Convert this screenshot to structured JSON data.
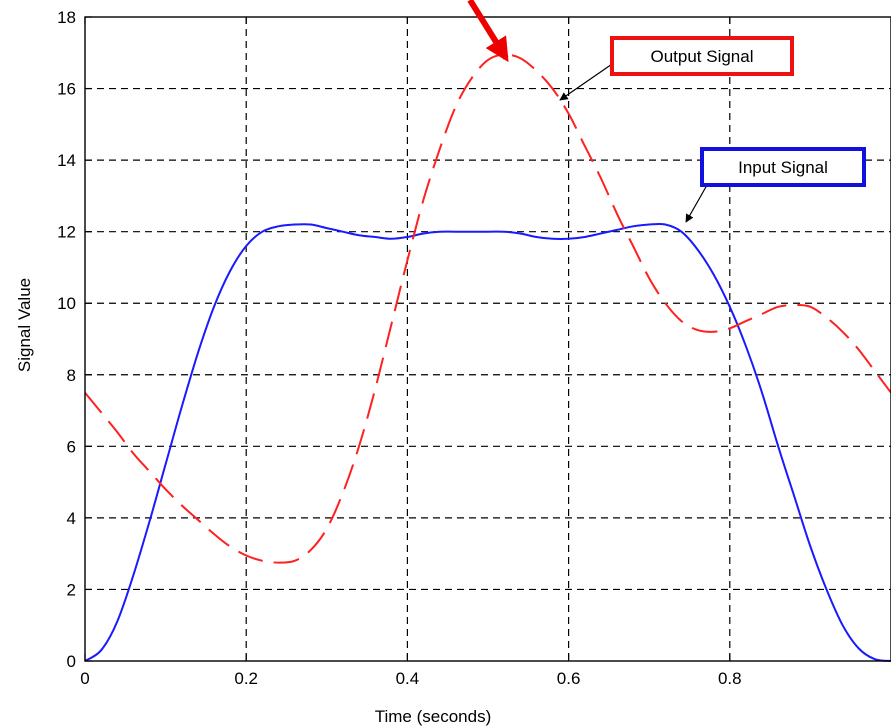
{
  "chart_data": {
    "type": "line",
    "title": "",
    "xlabel": "Time (seconds)",
    "ylabel": "Signal Value",
    "xlim": [
      0,
      1
    ],
    "ylim": [
      0,
      18
    ],
    "x_ticks": [
      0,
      0.2,
      0.4,
      0.6,
      0.8
    ],
    "x_tick_labels": [
      "0",
      "0.2",
      "0.4",
      "0.6",
      "0.8"
    ],
    "y_ticks": [
      0,
      2,
      4,
      6,
      8,
      10,
      12,
      14,
      16,
      18
    ],
    "y_tick_labels": [
      "0",
      "2",
      "4",
      "6",
      "8",
      "10",
      "12",
      "14",
      "16",
      "18"
    ],
    "grid": true,
    "legend": "none",
    "series": [
      {
        "name": "Input Signal",
        "color": "#1a1aff",
        "style": "solid",
        "x": [
          0,
          0.02,
          0.04,
          0.06,
          0.08,
          0.1,
          0.12,
          0.14,
          0.16,
          0.18,
          0.2,
          0.22,
          0.24,
          0.26,
          0.28,
          0.3,
          0.32,
          0.34,
          0.36,
          0.38,
          0.4,
          0.42,
          0.44,
          0.46,
          0.48,
          0.5,
          0.52,
          0.54,
          0.56,
          0.58,
          0.6,
          0.62,
          0.64,
          0.66,
          0.68,
          0.7,
          0.72,
          0.74,
          0.76,
          0.78,
          0.8,
          0.82,
          0.84,
          0.86,
          0.88,
          0.9,
          0.92,
          0.94,
          0.96,
          0.98,
          1.0
        ],
        "y": [
          0,
          0.3,
          1.1,
          2.4,
          3.9,
          5.5,
          7.1,
          8.6,
          9.9,
          10.9,
          11.6,
          12.0,
          12.15,
          12.2,
          12.2,
          12.1,
          12.0,
          11.9,
          11.85,
          11.8,
          11.85,
          11.95,
          12.0,
          12.0,
          12.0,
          12.0,
          12.0,
          11.95,
          11.85,
          11.8,
          11.8,
          11.85,
          11.95,
          12.05,
          12.15,
          12.2,
          12.2,
          12.0,
          11.5,
          10.8,
          9.9,
          8.8,
          7.5,
          6.0,
          4.6,
          3.2,
          2.0,
          1.0,
          0.35,
          0.05,
          0
        ]
      },
      {
        "name": "Output Signal",
        "color": "#ff2020",
        "style": "dashed",
        "x": [
          0,
          0.02,
          0.04,
          0.06,
          0.08,
          0.1,
          0.12,
          0.14,
          0.16,
          0.18,
          0.2,
          0.22,
          0.24,
          0.26,
          0.28,
          0.3,
          0.32,
          0.34,
          0.36,
          0.38,
          0.4,
          0.42,
          0.44,
          0.46,
          0.48,
          0.5,
          0.52,
          0.54,
          0.56,
          0.58,
          0.6,
          0.62,
          0.64,
          0.66,
          0.68,
          0.7,
          0.72,
          0.74,
          0.76,
          0.78,
          0.8,
          0.82,
          0.84,
          0.86,
          0.88,
          0.9,
          0.92,
          0.94,
          0.96,
          0.98,
          1.0
        ],
        "y": [
          7.5,
          6.95,
          6.4,
          5.8,
          5.3,
          4.8,
          4.35,
          3.95,
          3.55,
          3.2,
          2.95,
          2.8,
          2.75,
          2.8,
          3.1,
          3.7,
          4.7,
          6.0,
          7.6,
          9.4,
          11.2,
          12.9,
          14.3,
          15.5,
          16.3,
          16.8,
          16.95,
          16.85,
          16.5,
          16.0,
          15.3,
          14.4,
          13.5,
          12.5,
          11.6,
          10.7,
          10.0,
          9.5,
          9.25,
          9.2,
          9.3,
          9.5,
          9.7,
          9.9,
          9.95,
          9.9,
          9.6,
          9.2,
          8.7,
          8.1,
          7.5
        ]
      }
    ],
    "annotations": [
      {
        "text": "Output Signal",
        "box_color": "#ee1111",
        "points_to": [
          0.585,
          16.1
        ]
      },
      {
        "text": "Input Signal",
        "box_color": "#1111dd",
        "points_to": [
          0.745,
          12.2
        ]
      }
    ],
    "pointer_arrow": {
      "color": "#ee0000",
      "points_to": [
        0.53,
        17.1
      ]
    }
  }
}
